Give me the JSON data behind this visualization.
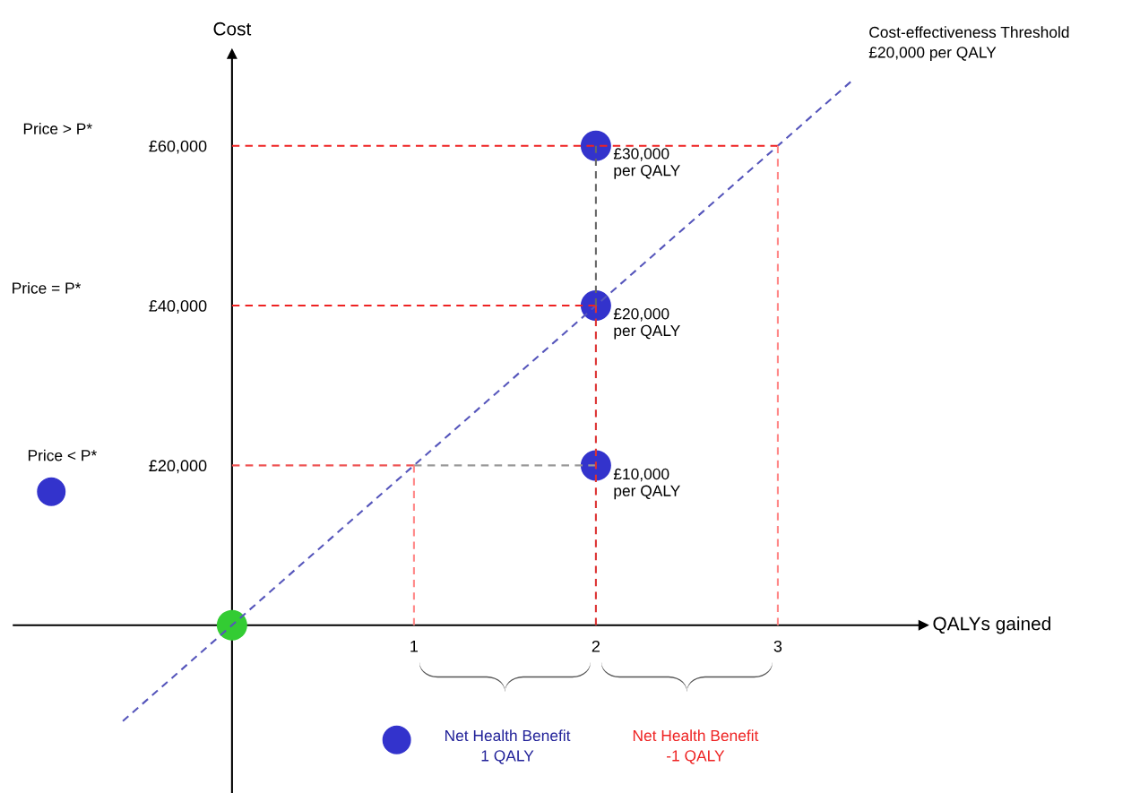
{
  "chart_data": {
    "type": "scatter",
    "xlabel": "QALYs gained",
    "ylabel": "Cost",
    "xlim": [
      -1.2,
      3.8
    ],
    "ylim": [
      -21000,
      71500
    ],
    "xticks": [
      1,
      2,
      3
    ],
    "yticks": [
      {
        "value": 20000,
        "label": "£20,000"
      },
      {
        "value": 40000,
        "label": "£40,000"
      },
      {
        "value": 60000,
        "label": "£60,000"
      }
    ],
    "grid": false,
    "series": [
      {
        "type": "line",
        "x": [
          -0.6,
          3.4
        ],
        "values": [
          -12000,
          68000
        ],
        "color": "#5555bb",
        "line_style": "dashed"
      },
      {
        "type": "line",
        "x": [
          0,
          3
        ],
        "values": [
          60000,
          60000
        ],
        "color": "#ee2222",
        "line_style": "dashed"
      },
      {
        "type": "line",
        "x": [
          0,
          2
        ],
        "values": [
          40000,
          40000
        ],
        "color": "#ee2222",
        "line_style": "dashed"
      },
      {
        "type": "line",
        "x": [
          0,
          1
        ],
        "values": [
          20000,
          20000
        ],
        "color": "#ee5555",
        "line_style": "dashed"
      },
      {
        "type": "line",
        "x": [
          1,
          2
        ],
        "values": [
          20000,
          20000
        ],
        "color": "#999999",
        "line_style": "dashed"
      },
      {
        "type": "line",
        "x": [
          1,
          1
        ],
        "values": [
          0,
          20000
        ],
        "color": "#ff8888",
        "line_style": "dashed"
      },
      {
        "type": "line",
        "x": [
          2,
          2
        ],
        "values": [
          0,
          40000
        ],
        "color": "#dd3333",
        "line_style": "dashed"
      },
      {
        "type": "line",
        "x": [
          2,
          2
        ],
        "values": [
          40000,
          60000
        ],
        "color": "#666666",
        "line_style": "dashed"
      },
      {
        "type": "line",
        "x": [
          3,
          3
        ],
        "values": [
          0,
          60000
        ],
        "color": "#ff8888",
        "line_style": "dashed"
      },
      {
        "x": [
          2,
          2,
          2
        ],
        "values": [
          60000,
          40000,
          20000
        ],
        "color": "#3333cc",
        "marker": "circle"
      },
      {
        "x": [
          0
        ],
        "values": [
          0
        ],
        "color": "#33cc33",
        "marker": "circle"
      }
    ],
    "annotations": [
      "Price > P*",
      "Price = P*",
      "Price < P*",
      "Cost-effectiveness Threshold\n£20,000 per QALY",
      "£30,000\nper QALY",
      "£20,000\nper QALY",
      "£10,000\nper QALY",
      "Net Health Benefit\n1 QALY",
      "Net Health Benefit\n-1 QALY"
    ]
  }
}
